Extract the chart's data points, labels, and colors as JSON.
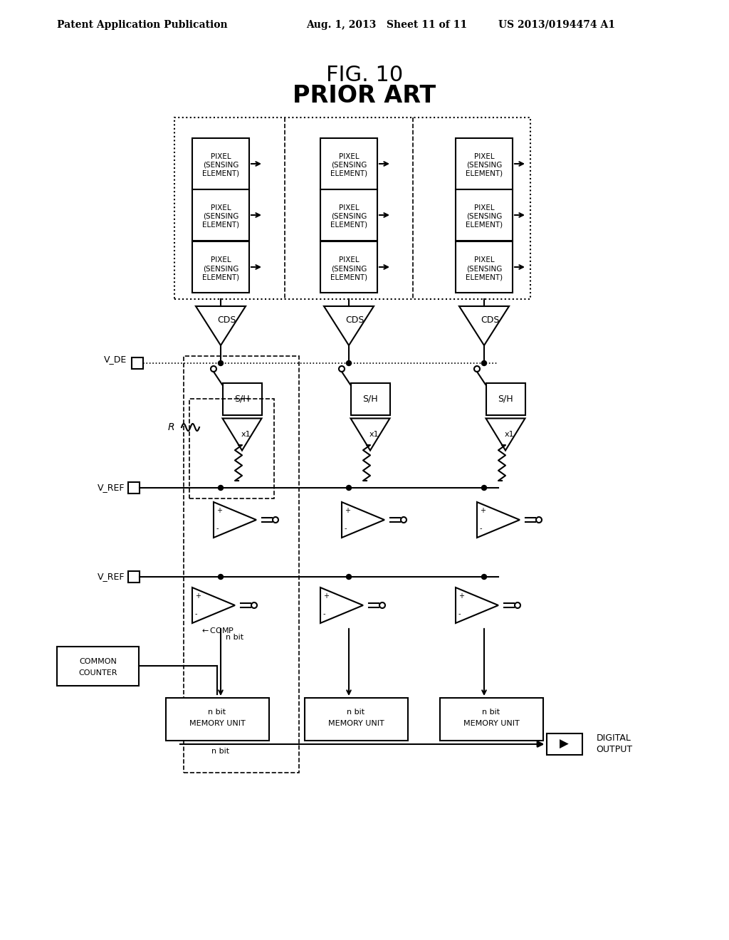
{
  "title_line1": "FIG. 10",
  "title_line2": "PRIOR ART",
  "header_left": "Patent Application Publication",
  "header_mid": "Aug. 1, 2013   Sheet 11 of 11",
  "header_right": "US 2013/0194474 A1",
  "bg_color": "#ffffff",
  "text_color": "#000000"
}
